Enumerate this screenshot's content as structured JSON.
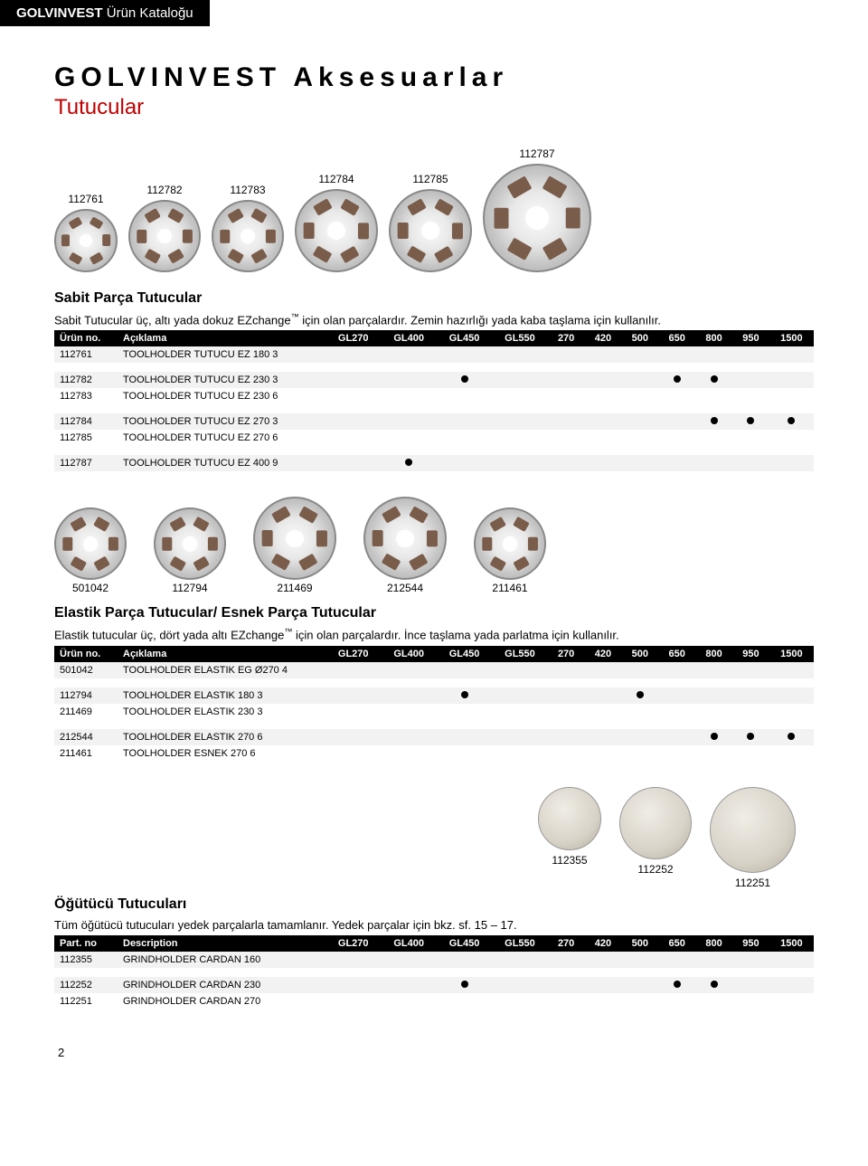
{
  "header": {
    "brand": "GOLVINVEST",
    "catalog": "Ürün Kataloğu"
  },
  "main_title": "GOLVINVEST Aksesuarlar",
  "subtitle": "Tutucular",
  "page_number": "2",
  "section1": {
    "title": "Sabit Parça Tutucular",
    "desc_part_a": "Sabit Tutucular üç, altı yada dokuz EZchange",
    "desc_part_b": " için olan parçalardır. Zemin hazırlığı yada kaba taşlama için kullanılır.",
    "figures": [
      {
        "id": "112761",
        "size": 70
      },
      {
        "id": "112782",
        "size": 80
      },
      {
        "id": "112783",
        "size": 80
      },
      {
        "id": "112784",
        "size": 92
      },
      {
        "id": "112785",
        "size": 92
      },
      {
        "id": "112787",
        "size": 120
      }
    ],
    "columns": [
      "Ürün no.",
      "Açıklama",
      "GL270",
      "GL400",
      "GL450",
      "GL550",
      "270",
      "420",
      "500",
      "650",
      "800",
      "950",
      "1500"
    ],
    "rows": [
      {
        "id": "112761",
        "name": "TOOLHOLDER TUTUCU EZ 180 3",
        "marks": [],
        "alt": true
      },
      {
        "id": "",
        "spacer": true
      },
      {
        "id": "112782",
        "name": "TOOLHOLDER TUTUCU EZ 230 3",
        "marks": [
          "GL450",
          "650",
          "800"
        ],
        "alt": true
      },
      {
        "id": "112783",
        "name": "TOOLHOLDER TUTUCU EZ 230 6",
        "marks": [],
        "alt": false
      },
      {
        "id": "",
        "spacer": true
      },
      {
        "id": "112784",
        "name": "TOOLHOLDER TUTUCU EZ 270 3",
        "marks": [
          "800",
          "950",
          "1500"
        ],
        "alt": true
      },
      {
        "id": "112785",
        "name": "TOOLHOLDER TUTUCU EZ 270 6",
        "marks": [],
        "alt": false
      },
      {
        "id": "",
        "spacer": true
      },
      {
        "id": "112787",
        "name": "TOOLHOLDER TUTUCU EZ 400 9",
        "marks": [
          "GL400"
        ],
        "alt": true
      }
    ]
  },
  "section2": {
    "title_prefix": "Elastik Parça Tutucular/ Esnek Parça Tutucular",
    "desc_part_a": "Elastik tutucular üç, dört yada altı EZchange",
    "desc_part_b": " için olan parçalardır. İnce taşlama yada parlatma için kullanılır.",
    "figures": [
      {
        "id": "501042",
        "size": 80
      },
      {
        "id": "112794",
        "size": 80
      },
      {
        "id": "211469",
        "size": 92
      },
      {
        "id": "212544",
        "size": 92
      },
      {
        "id": "211461",
        "size": 80
      }
    ],
    "columns": [
      "Ürün no.",
      "Açıklama",
      "GL270",
      "GL400",
      "GL450",
      "GL550",
      "270",
      "420",
      "500",
      "650",
      "800",
      "950",
      "1500"
    ],
    "rows": [
      {
        "id": "501042",
        "name": "TOOLHOLDER ELASTIK EG Ø270 4",
        "marks": [],
        "alt": true
      },
      {
        "id": "",
        "spacer": true
      },
      {
        "id": "112794",
        "name": "TOOLHOLDER ELASTIK 180 3",
        "marks": [
          "GL450",
          "500"
        ],
        "alt": true
      },
      {
        "id": "211469",
        "name": "TOOLHOLDER ELASTIK 230 3",
        "marks": [],
        "alt": false
      },
      {
        "id": "",
        "spacer": true
      },
      {
        "id": "212544",
        "name": "TOOLHOLDER ELASTIK 270 6",
        "marks": [
          "800",
          "950",
          "1500"
        ],
        "alt": true
      },
      {
        "id": "211461",
        "name": "TOOLHOLDER ESNEK 270 6",
        "marks": [],
        "alt": false
      }
    ]
  },
  "section3": {
    "title": "Öğütücü Tutucuları",
    "desc": "Tüm öğütücü tutucuları yedek parçalarla tamamlanır. Yedek parçalar için bkz. sf. 15 – 17.",
    "images": [
      {
        "id": "112355",
        "size": 70
      },
      {
        "id": "112252",
        "size": 80
      },
      {
        "id": "112251",
        "size": 95
      }
    ],
    "columns": [
      "Part. no",
      "Description",
      "GL270",
      "GL400",
      "GL450",
      "GL550",
      "270",
      "420",
      "500",
      "650",
      "800",
      "950",
      "1500"
    ],
    "rows": [
      {
        "id": "112355",
        "name": "GRINDHOLDER CARDAN 160",
        "marks": [],
        "alt": true
      },
      {
        "id": "",
        "spacer": true
      },
      {
        "id": "112252",
        "name": "GRINDHOLDER CARDAN 230",
        "marks": [
          "GL450",
          "650",
          "800"
        ],
        "alt": true
      },
      {
        "id": "112251",
        "name": "GRINDHOLDER CARDAN 270",
        "marks": [],
        "alt": false
      }
    ]
  },
  "col_keys": [
    "GL270",
    "GL400",
    "GL450",
    "GL550",
    "270",
    "420",
    "500",
    "650",
    "800",
    "950",
    "1500"
  ]
}
